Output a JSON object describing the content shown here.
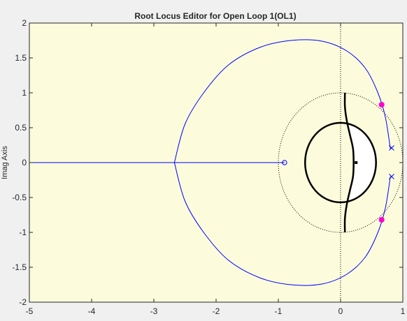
{
  "chart_data": {
    "type": "line",
    "title": "Root Locus Editor for Open Loop 1(OL1)",
    "xlabel": "",
    "ylabel": "Imag Axis",
    "xlim": [
      -5,
      1
    ],
    "ylim": [
      -2,
      2
    ],
    "xticks": [
      -5,
      -4,
      -3,
      -2,
      -1,
      0,
      1
    ],
    "yticks": [
      -2,
      -1.5,
      -1,
      -0.5,
      0,
      0.5,
      1,
      1.5,
      2
    ],
    "grid": false,
    "legend": "none",
    "colors": {
      "plot_background": "#fcfcdc",
      "locus": "#0000ff",
      "pole_marker": "#0000ff",
      "zero_marker": "#0000ff",
      "closed_loop_pole": "#ff00cc",
      "region_boundary": "#000000",
      "unit_circle": "#000000"
    },
    "series": [
      {
        "type": "locus_branch",
        "x": [
          0.8,
          0.72,
          0.6,
          0.4,
          0.1,
          -0.3,
          -0.8,
          -1.3,
          -1.8,
          -2.2,
          -2.5,
          -2.67
        ],
        "y": [
          0.2,
          0.65,
          1.0,
          1.35,
          1.6,
          1.74,
          1.75,
          1.65,
          1.4,
          1.0,
          0.55,
          0
        ]
      },
      {
        "type": "locus_branch",
        "x": [
          0.8,
          0.72,
          0.6,
          0.4,
          0.1,
          -0.3,
          -0.8,
          -1.3,
          -1.8,
          -2.2,
          -2.5,
          -2.67
        ],
        "y": [
          -0.2,
          -0.65,
          -1.0,
          -1.35,
          -1.6,
          -1.74,
          -1.75,
          -1.65,
          -1.4,
          -1.0,
          -0.55,
          0
        ]
      },
      {
        "type": "real_axis_branch",
        "x": [
          -5,
          -0.9
        ],
        "y": [
          0,
          0
        ]
      }
    ],
    "open_loop_poles": [
      {
        "x": 0.82,
        "y": 0.21
      },
      {
        "x": 0.82,
        "y": -0.2
      }
    ],
    "open_loop_zeros": [
      {
        "x": -0.9,
        "y": 0
      }
    ],
    "closed_loop_poles": [
      {
        "x": 0.66,
        "y": 0.83
      },
      {
        "x": 0.66,
        "y": -0.82
      }
    ],
    "reference_circle": {
      "cx": 0,
      "cy": 0,
      "r": 1
    },
    "design_region_ellipse": {
      "cx": 0,
      "cy": 0,
      "rx": 0.57,
      "ry": 0.57
    },
    "design_region_curve": {
      "x": [
        0.07,
        0.07,
        0.1,
        0.15,
        0.2,
        0.21,
        0.2,
        0.15,
        0.1,
        0.07,
        0.07
      ],
      "y": [
        1.0,
        0.8,
        0.6,
        0.4,
        0.2,
        0,
        -0.2,
        -0.4,
        -0.6,
        -0.8,
        -1.0
      ]
    },
    "small_marker": {
      "x": 0.25,
      "y": 0
    }
  }
}
